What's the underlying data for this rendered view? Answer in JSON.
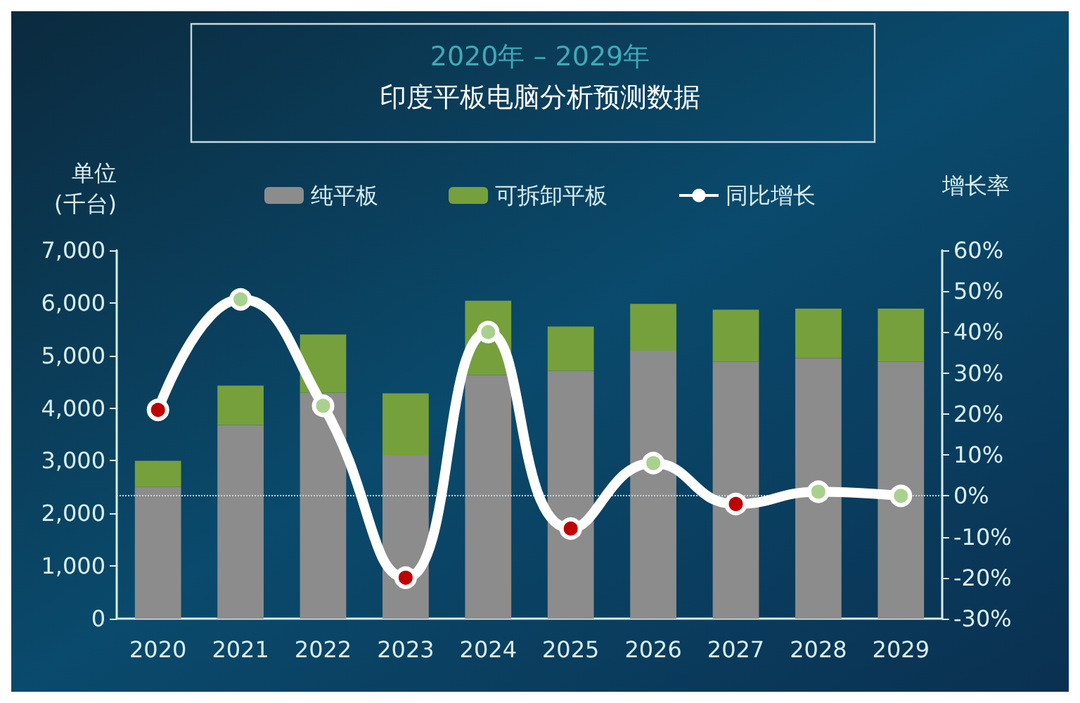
{
  "chart_data": {
    "type": "bar",
    "title": "2020年 – 2029年",
    "subtitle": "印度平板电脑分析预测数据",
    "ylabel": "单位\n(千台)",
    "y2label": "增长率",
    "categories": [
      "2020",
      "2021",
      "2022",
      "2023",
      "2024",
      "2025",
      "2026",
      "2027",
      "2028",
      "2029"
    ],
    "stacked": true,
    "series": [
      {
        "name": "纯平板",
        "color": "#8c8c8c",
        "values": [
          2500,
          3680,
          4290,
          3100,
          4630,
          4710,
          5090,
          4880,
          4950,
          4880
        ]
      },
      {
        "name": "可拆卸平板",
        "color": "#76a03c",
        "values": [
          500,
          750,
          1110,
          1180,
          1410,
          840,
          890,
          990,
          940,
          1010
        ]
      },
      {
        "name": "同比增长",
        "type": "line",
        "axis": "y2",
        "color": "#ffffff",
        "marker": "circle",
        "colors": [
          "#c00000",
          "#a9d18e",
          "#a9d18e",
          "#c00000",
          "#a9d18e",
          "#c00000",
          "#a9d18e",
          "#c00000",
          "#a9d18e",
          "#a9d18e"
        ],
        "values": [
          21,
          48,
          22,
          -20,
          40,
          -8,
          8,
          -2,
          1,
          0
        ]
      }
    ],
    "ylim": [
      0,
      7000
    ],
    "yticks": [
      0,
      {
        "value": 1000,
        "label": "1,000"
      },
      {
        "value": 2000,
        "label": "2,000"
      },
      {
        "value": 3000,
        "label": "3,000"
      },
      {
        "value": 4000,
        "label": "4,000"
      },
      {
        "value": 5000,
        "label": "5,000"
      },
      {
        "value": 6000,
        "label": "6,000"
      },
      {
        "value": 7000,
        "label": "7,000"
      }
    ],
    "y2lim": [
      -30,
      60
    ],
    "y2ticks": [
      {
        "value": -30,
        "label": "-30%"
      },
      {
        "value": -20,
        "label": "-20%"
      },
      {
        "value": -10,
        "label": "-10%"
      },
      {
        "value": 0,
        "label": "0%"
      },
      {
        "value": 10,
        "label": "10%"
      },
      {
        "value": 20,
        "label": "20%"
      },
      {
        "value": 30,
        "label": "30%"
      },
      {
        "value": 40,
        "label": "40%"
      },
      {
        "value": 50,
        "label": "50%"
      },
      {
        "value": 60,
        "label": "60%"
      }
    ],
    "ref_lines": [
      {
        "axis": "y2",
        "value": 0,
        "color": "#bcd3e0",
        "line_style": "dotted"
      }
    ],
    "legend": "top",
    "grid": false
  }
}
